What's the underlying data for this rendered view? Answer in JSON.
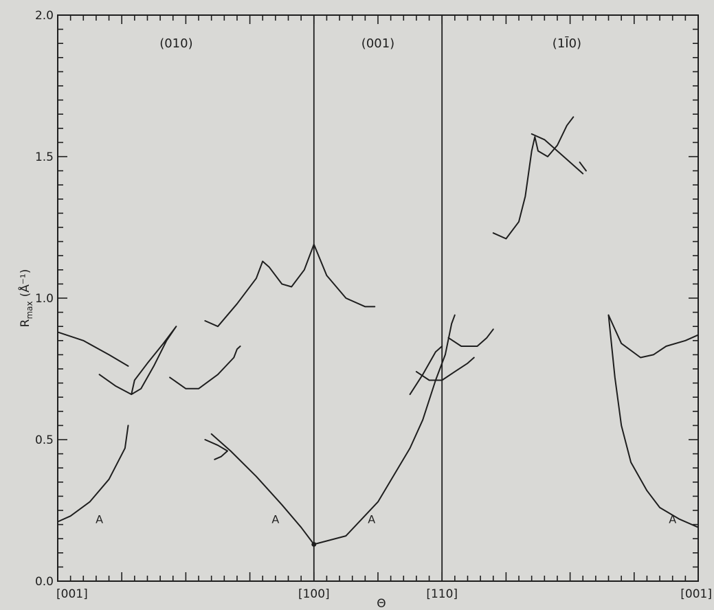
{
  "chart_data": {
    "type": "line",
    "xlabel": "Θ",
    "ylabel": "R max (Å⁻¹)",
    "ylabel_parts": {
      "main": "R",
      "sub": "max",
      "unit": "(Å⁻¹)"
    },
    "ylim": [
      0.0,
      2.0
    ],
    "xlim": [
      0,
      100
    ],
    "grid": false,
    "legend": "none",
    "y_ticks": [
      {
        "value": 0.0,
        "label": "0.0"
      },
      {
        "value": 0.5,
        "label": "0.5"
      },
      {
        "value": 1.0,
        "label": "1.0"
      },
      {
        "value": 1.5,
        "label": "1.5"
      },
      {
        "value": 2.0,
        "label": "2.0"
      }
    ],
    "x_ticks": [
      {
        "value": 0,
        "label": "[001]"
      },
      {
        "value": 40,
        "label": "[100]"
      },
      {
        "value": 60,
        "label": "[110]"
      },
      {
        "value": 100,
        "label": "[001]"
      }
    ],
    "section_dividers": [
      40,
      60
    ],
    "panels": [
      {
        "label": "(010)",
        "x": 18.5,
        "y": 1.9
      },
      {
        "label": "(001)",
        "x": 50,
        "y": 1.9
      },
      {
        "label": "(1Ī0)",
        "x": 79.5,
        "y": 1.9
      }
    ],
    "annotations": [
      {
        "text": "A",
        "x": 6.5,
        "y": 0.22
      },
      {
        "text": "A",
        "x": 34,
        "y": 0.22
      },
      {
        "text": "A",
        "x": 49,
        "y": 0.22
      },
      {
        "text": "A",
        "x": 96,
        "y": 0.22
      }
    ],
    "series": [
      {
        "points": [
          [
            0,
            0.21
          ],
          [
            2,
            0.23
          ],
          [
            5,
            0.28
          ],
          [
            8,
            0.36
          ],
          [
            10.5,
            0.47
          ],
          [
            11,
            0.55
          ]
        ]
      },
      {
        "points": [
          [
            0,
            0.88
          ],
          [
            4,
            0.85
          ],
          [
            8,
            0.8
          ],
          [
            11,
            0.76
          ]
        ]
      },
      {
        "points": [
          [
            6.5,
            0.73
          ],
          [
            9,
            0.69
          ],
          [
            11.5,
            0.66
          ],
          [
            13,
            0.68
          ],
          [
            15,
            0.76
          ],
          [
            17,
            0.85
          ],
          [
            18.5,
            0.9
          ],
          [
            16.5,
            0.84
          ],
          [
            14,
            0.77
          ],
          [
            12,
            0.71
          ],
          [
            11.5,
            0.66
          ]
        ]
      },
      {
        "points": [
          [
            17.5,
            0.72
          ],
          [
            20,
            0.68
          ],
          [
            22,
            0.68
          ],
          [
            25,
            0.73
          ],
          [
            27.5,
            0.79
          ],
          [
            28,
            0.82
          ],
          [
            28.5,
            0.83
          ]
        ]
      },
      {
        "points": [
          [
            23,
            0.5
          ],
          [
            25,
            0.48
          ],
          [
            26.5,
            0.46
          ],
          [
            25.5,
            0.44
          ],
          [
            24.5,
            0.43
          ]
        ]
      },
      {
        "points": [
          [
            24,
            0.52
          ],
          [
            27,
            0.46
          ],
          [
            31,
            0.37
          ],
          [
            35,
            0.27
          ],
          [
            38,
            0.19
          ],
          [
            40,
            0.13
          ],
          [
            45,
            0.16
          ],
          [
            50,
            0.28
          ],
          [
            55,
            0.47
          ],
          [
            57,
            0.57
          ],
          [
            59,
            0.71
          ],
          [
            60.5,
            0.8
          ],
          [
            61.5,
            0.91
          ],
          [
            62,
            0.94
          ]
        ]
      },
      {
        "points": [
          [
            23,
            0.92
          ],
          [
            25,
            0.9
          ],
          [
            28,
            0.98
          ],
          [
            31,
            1.07
          ],
          [
            32,
            1.13
          ],
          [
            33,
            1.11
          ],
          [
            35,
            1.05
          ],
          [
            36.5,
            1.04
          ],
          [
            38.5,
            1.1
          ],
          [
            40,
            1.19
          ],
          [
            42,
            1.08
          ],
          [
            45,
            1.0
          ],
          [
            48,
            0.97
          ],
          [
            49.5,
            0.97
          ]
        ]
      },
      {
        "points": [
          [
            56,
            0.74
          ],
          [
            58,
            0.71
          ],
          [
            60,
            0.71
          ],
          [
            62,
            0.74
          ],
          [
            64,
            0.77
          ],
          [
            65,
            0.79
          ]
        ]
      },
      {
        "points": [
          [
            55,
            0.66
          ],
          [
            57,
            0.73
          ],
          [
            59,
            0.81
          ],
          [
            60,
            0.83
          ]
        ]
      },
      {
        "points": [
          [
            61,
            0.86
          ],
          [
            63,
            0.83
          ],
          [
            65.5,
            0.83
          ],
          [
            67,
            0.86
          ],
          [
            68,
            0.89
          ]
        ]
      },
      {
        "points": [
          [
            68,
            1.23
          ],
          [
            70,
            1.21
          ],
          [
            72,
            1.27
          ],
          [
            73,
            1.36
          ],
          [
            74,
            1.52
          ],
          [
            74.5,
            1.57
          ],
          [
            75,
            1.52
          ],
          [
            76.5,
            1.5
          ],
          [
            78,
            1.54
          ],
          [
            79.5,
            1.61
          ],
          [
            80.5,
            1.64
          ]
        ]
      },
      {
        "points": [
          [
            74,
            1.58
          ],
          [
            76,
            1.56
          ],
          [
            79,
            1.5
          ],
          [
            82,
            1.44
          ]
        ]
      },
      {
        "points": [
          [
            81.5,
            1.48
          ],
          [
            82.5,
            1.45
          ]
        ]
      },
      {
        "points": [
          [
            86,
            0.94
          ],
          [
            88,
            0.84
          ],
          [
            91,
            0.79
          ],
          [
            93,
            0.8
          ],
          [
            95,
            0.83
          ],
          [
            98,
            0.85
          ],
          [
            100,
            0.87
          ]
        ]
      },
      {
        "points": [
          [
            86,
            0.94
          ],
          [
            87,
            0.72
          ],
          [
            88,
            0.55
          ],
          [
            89.5,
            0.42
          ],
          [
            92,
            0.32
          ],
          [
            94,
            0.26
          ],
          [
            97,
            0.22
          ],
          [
            100,
            0.19
          ]
        ]
      }
    ],
    "markers": [
      [
        40,
        0.13
      ]
    ]
  }
}
